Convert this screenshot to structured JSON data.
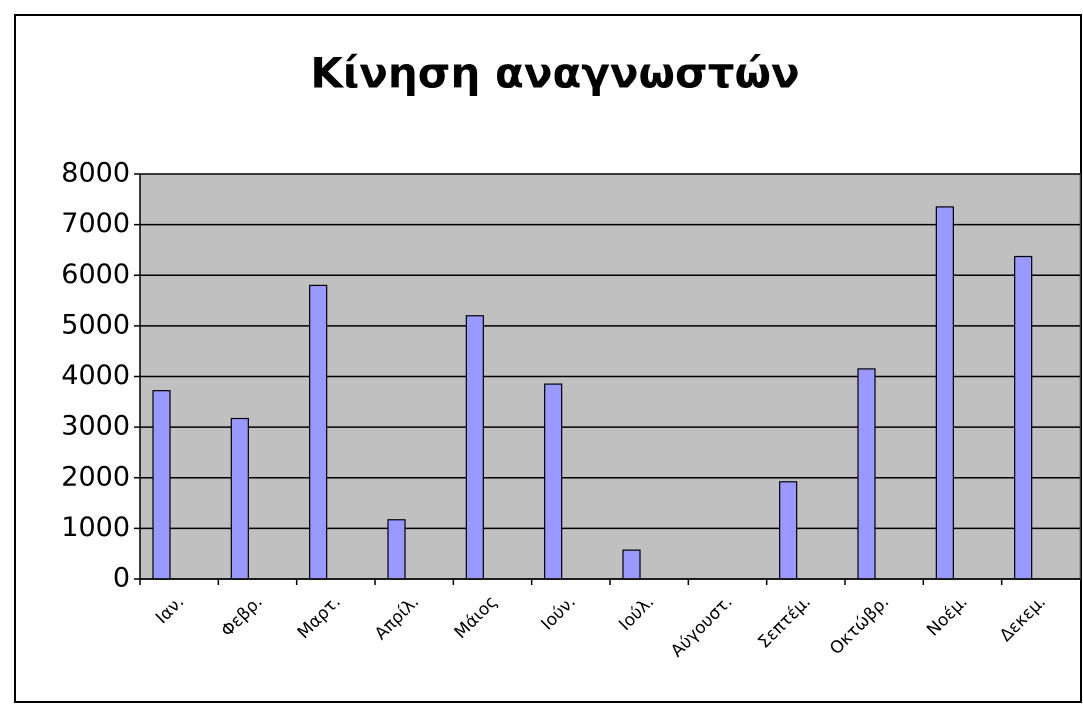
{
  "chart_data": {
    "type": "bar",
    "title": "Κίνηση αναγνωστών",
    "categories": [
      "Ιαν.",
      "Φεβρ.",
      "Μαρτ.",
      "Απρίλ.",
      "Μάιος",
      "Ιούν.",
      "Ιούλ.",
      "Αύγουστ.",
      "Σεπτέμ.",
      "Οκτώβρ.",
      "Νοέμ.",
      "Δεκεμ."
    ],
    "values": [
      3720,
      3170,
      5800,
      1170,
      5200,
      3850,
      570,
      0,
      1920,
      4150,
      7350,
      6370
    ],
    "color": "#9999ff",
    "ylim": [
      0,
      8000
    ],
    "yticks": [
      0,
      1000,
      2000,
      3000,
      4000,
      5000,
      6000,
      7000,
      8000
    ],
    "grid": true
  }
}
